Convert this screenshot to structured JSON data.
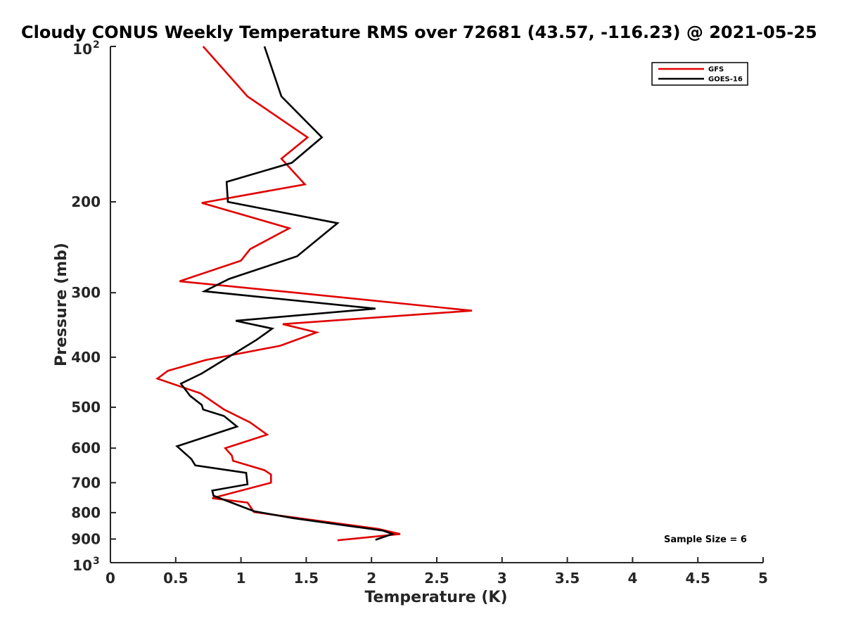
{
  "chart_data": {
    "type": "line",
    "title": "Cloudy CONUS Weekly Temperature RMS over 72681 (43.57, -116.23) @ 2021-05-25",
    "xlabel": "Temperature (K)",
    "ylabel": "Pressure (mb)",
    "xlim": [
      0,
      5
    ],
    "ylim": [
      100,
      1000
    ],
    "yscale": "log",
    "y_reversed": true,
    "x_ticks": [
      "0",
      "0.5",
      "1",
      "1.5",
      "2",
      "2.5",
      "3",
      "3.5",
      "4",
      "4.5",
      "5"
    ],
    "x_tick_values": [
      0,
      0.5,
      1,
      1.5,
      2,
      2.5,
      3,
      3.5,
      4,
      4.5,
      5
    ],
    "y_tick_values": [
      100,
      200,
      300,
      400,
      500,
      600,
      700,
      800,
      900,
      1000
    ],
    "y_tick_labels": [
      {
        "value": 100,
        "base": "10",
        "exp": "2"
      },
      {
        "value": 200,
        "base": "200",
        "exp": ""
      },
      {
        "value": 300,
        "base": "300",
        "exp": ""
      },
      {
        "value": 400,
        "base": "400",
        "exp": ""
      },
      {
        "value": 500,
        "base": "500",
        "exp": ""
      },
      {
        "value": 600,
        "base": "600",
        "exp": ""
      },
      {
        "value": 700,
        "base": "700",
        "exp": ""
      },
      {
        "value": 800,
        "base": "800",
        "exp": ""
      },
      {
        "value": 900,
        "base": "900",
        "exp": ""
      },
      {
        "value": 1000,
        "base": "10",
        "exp": "3"
      }
    ],
    "grid": false,
    "legend_position": "top-right",
    "annotation": "Sample Size = 6",
    "series": [
      {
        "name": "GFS",
        "color": "#e00000",
        "points": [
          [
            0.71,
            100
          ],
          [
            1.05,
            125
          ],
          [
            1.51,
            150
          ],
          [
            1.31,
            165
          ],
          [
            1.49,
            185
          ],
          [
            0.7,
            201
          ],
          [
            1.37,
            225
          ],
          [
            1.07,
            247
          ],
          [
            1.0,
            260
          ],
          [
            0.53,
            285
          ],
          [
            1.42,
            300
          ],
          [
            2.77,
            325
          ],
          [
            1.32,
            345
          ],
          [
            1.58,
            358
          ],
          [
            1.3,
            380
          ],
          [
            0.73,
            405
          ],
          [
            0.44,
            425
          ],
          [
            0.36,
            440
          ],
          [
            0.69,
            470
          ],
          [
            0.87,
            505
          ],
          [
            1.07,
            535
          ],
          [
            1.2,
            565
          ],
          [
            0.88,
            600
          ],
          [
            0.93,
            620
          ],
          [
            0.94,
            635
          ],
          [
            1.18,
            662
          ],
          [
            1.23,
            675
          ],
          [
            1.23,
            700
          ],
          [
            0.78,
            750
          ],
          [
            1.05,
            765
          ],
          [
            1.1,
            798
          ],
          [
            2.05,
            860
          ],
          [
            2.22,
            880
          ],
          [
            1.74,
            905
          ]
        ]
      },
      {
        "name": "GOES-16",
        "color": "#000000",
        "points": [
          [
            1.18,
            100
          ],
          [
            1.31,
            125
          ],
          [
            1.62,
            150
          ],
          [
            1.39,
            168
          ],
          [
            0.89,
            183
          ],
          [
            0.9,
            200
          ],
          [
            1.74,
            220
          ],
          [
            1.43,
            255
          ],
          [
            0.91,
            282
          ],
          [
            0.72,
            298
          ],
          [
            2.03,
            322
          ],
          [
            0.96,
            340
          ],
          [
            1.24,
            352
          ],
          [
            1.12,
            370
          ],
          [
            0.7,
            430
          ],
          [
            0.54,
            450
          ],
          [
            0.61,
            475
          ],
          [
            0.7,
            495
          ],
          [
            0.71,
            505
          ],
          [
            0.87,
            520
          ],
          [
            0.97,
            545
          ],
          [
            0.51,
            595
          ],
          [
            0.62,
            630
          ],
          [
            0.65,
            648
          ],
          [
            1.04,
            670
          ],
          [
            1.05,
            705
          ],
          [
            0.78,
            725
          ],
          [
            0.79,
            742
          ],
          [
            1.1,
            795
          ],
          [
            1.4,
            820
          ],
          [
            2.09,
            867
          ],
          [
            2.16,
            880
          ],
          [
            2.03,
            903
          ]
        ]
      }
    ]
  }
}
